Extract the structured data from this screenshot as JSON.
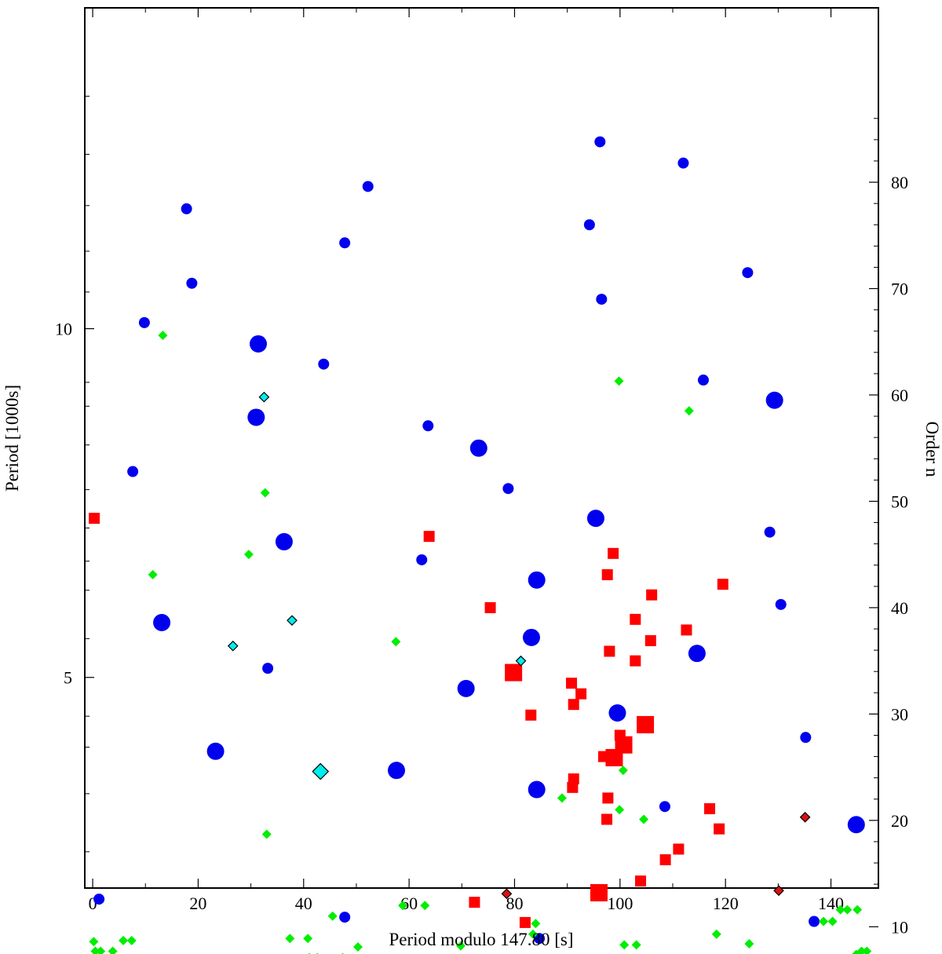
{
  "chart_data": {
    "type": "scatter",
    "xlabel": "Period modulo 147.80 [s]",
    "ylabel": "Period [1000s]",
    "y2label": "Order n",
    "xlim": [
      -1.5,
      149
    ],
    "ylim_period_ks": [
      1.98,
      14.6
    ],
    "y_scale": "linear in order n (inverse relation with period)",
    "order_period_ks": {
      "n1": 40,
      "p1": 6.0,
      "n2": 80,
      "p2": 12.1
    },
    "x_ticks": [
      0,
      20,
      40,
      60,
      80,
      100,
      120,
      140
    ],
    "x_tick_labels": [
      "0",
      "20",
      "40",
      "60",
      "80",
      "100",
      "120",
      "140"
    ],
    "y_left_ticks": [
      10,
      5
    ],
    "y_left_tick_labels": [
      "10",
      "5"
    ],
    "y_left_minor_ticks": [
      2.5,
      3.333,
      4.0,
      4.444,
      5.556,
      6.25,
      6.667,
      7.143,
      7.692,
      8.333,
      8.889,
      9.231,
      10.526,
      11.111,
      11.765,
      12.5,
      13.333
    ],
    "y_right_ticks": [
      10,
      20,
      30,
      40,
      50,
      60,
      70,
      80
    ],
    "y_right_tick_labels": [
      "10",
      "20",
      "30",
      "40",
      "50",
      "60",
      "70",
      "80"
    ],
    "grid": false,
    "colors": {
      "blue": "#0000ee",
      "red": "#ff0000",
      "green": "#00ee00",
      "cyan": "#00eeee",
      "darkred": "#dd1111"
    },
    "series": [
      {
        "marker": "circle",
        "color": "blue",
        "size": "small",
        "points": [
          [
            96.2,
            83.8
          ],
          [
            112,
            81.8
          ],
          [
            52.2,
            79.6
          ],
          [
            17.8,
            77.5
          ],
          [
            94.2,
            76.0
          ],
          [
            47.8,
            74.3
          ],
          [
            124.2,
            71.5
          ],
          [
            18.8,
            70.5
          ],
          [
            96.5,
            69.0
          ],
          [
            9.8,
            66.8
          ],
          [
            43.8,
            62.9
          ],
          [
            115.8,
            61.4
          ],
          [
            63.6,
            57.1
          ],
          [
            7.6,
            52.8
          ],
          [
            78.8,
            51.2
          ],
          [
            128.4,
            47.1
          ],
          [
            62.4,
            44.5
          ],
          [
            130.5,
            40.3
          ],
          [
            33.2,
            34.3
          ],
          [
            135.2,
            27.8
          ],
          [
            108.5,
            21.3
          ],
          [
            1.2,
            12.6
          ],
          [
            47.8,
            10.9
          ],
          [
            136.8,
            10.5
          ],
          [
            84.7,
            8.9
          ]
        ]
      },
      {
        "marker": "circle",
        "color": "blue",
        "size": "large",
        "points": [
          [
            31.4,
            64.8
          ],
          [
            129.3,
            59.5
          ],
          [
            31.0,
            57.9
          ],
          [
            73.2,
            55.0
          ],
          [
            95.4,
            48.4
          ],
          [
            36.3,
            46.2
          ],
          [
            84.2,
            42.6
          ],
          [
            13.1,
            38.6
          ],
          [
            83.2,
            37.2
          ],
          [
            114.6,
            35.7
          ],
          [
            70.8,
            32.4
          ],
          [
            99.5,
            30.1
          ],
          [
            23.3,
            26.5
          ],
          [
            57.6,
            24.7
          ],
          [
            84.2,
            22.9
          ],
          [
            144.8,
            19.6
          ]
        ]
      },
      {
        "marker": "square",
        "color": "red",
        "size": "small",
        "points": [
          [
            0.3,
            48.4
          ],
          [
            63.8,
            46.7
          ],
          [
            98.7,
            45.1
          ],
          [
            97.6,
            43.1
          ],
          [
            119.5,
            42.2
          ],
          [
            106,
            41.2
          ],
          [
            75.4,
            40.0
          ],
          [
            102.9,
            38.9
          ],
          [
            112.6,
            37.9
          ],
          [
            105.8,
            36.9
          ],
          [
            98.0,
            35.9
          ],
          [
            102.9,
            35.0
          ],
          [
            90.8,
            32.9
          ],
          [
            92.6,
            31.9
          ],
          [
            91.2,
            30.9
          ],
          [
            83.1,
            29.9
          ],
          [
            100,
            28.0
          ],
          [
            96.9,
            26.0
          ],
          [
            91.2,
            23.9
          ],
          [
            91.0,
            23.1
          ],
          [
            97.7,
            22.1
          ],
          [
            117,
            21.1
          ],
          [
            97.5,
            20.1
          ],
          [
            118.8,
            19.2
          ],
          [
            111.1,
            17.3
          ],
          [
            108.6,
            16.3
          ],
          [
            103.9,
            14.3
          ],
          [
            72.4,
            12.3
          ],
          [
            82.0,
            10.4
          ]
        ]
      },
      {
        "marker": "square",
        "color": "red",
        "size": "large",
        "points": [
          [
            79.8,
            33.9
          ],
          [
            104.8,
            29.0
          ],
          [
            100.7,
            27.1
          ],
          [
            98.9,
            25.9
          ],
          [
            96.0,
            13.2
          ]
        ]
      },
      {
        "marker": "diamond",
        "color": "green",
        "size": "small",
        "points": [
          [
            13.3,
            65.6
          ],
          [
            99.8,
            61.3
          ],
          [
            113.1,
            58.5
          ],
          [
            32.7,
            50.8
          ],
          [
            29.6,
            45.0
          ],
          [
            11.4,
            43.1
          ],
          [
            57.5,
            36.8
          ],
          [
            100.6,
            24.7
          ],
          [
            89.0,
            22.1
          ],
          [
            99.9,
            21.0
          ],
          [
            104.5,
            20.1
          ],
          [
            33.0,
            18.7
          ],
          [
            145.0,
            11.6
          ],
          [
            143.1,
            11.6
          ],
          [
            141.8,
            11.6
          ],
          [
            58.8,
            12.0
          ],
          [
            63.0,
            12.0
          ],
          [
            45.5,
            11.0
          ],
          [
            84.0,
            10.3
          ],
          [
            138.6,
            10.5
          ],
          [
            140.3,
            10.5
          ],
          [
            83.5,
            9.3
          ],
          [
            118.3,
            9.3
          ],
          [
            0.2,
            8.6
          ],
          [
            5.8,
            8.7
          ],
          [
            7.4,
            8.7
          ],
          [
            37.4,
            8.9
          ],
          [
            40.8,
            8.9
          ],
          [
            124.5,
            8.4
          ],
          [
            0.5,
            7.7
          ],
          [
            1.5,
            7.7
          ],
          [
            3.8,
            7.7
          ],
          [
            50.3,
            8.1
          ],
          [
            69.8,
            8.2
          ],
          [
            100.8,
            8.3
          ],
          [
            103.1,
            8.3
          ],
          [
            41.1,
            7.1
          ],
          [
            42.6,
            7.1
          ],
          [
            47.4,
            7.1
          ],
          [
            146.8,
            7.7
          ],
          [
            145.8,
            7.7
          ],
          [
            144.8,
            7.4
          ],
          [
            143.8,
            6.6
          ],
          [
            145.5,
            6.6
          ],
          [
            146.4,
            6.6
          ],
          [
            31.2,
            5.8
          ],
          [
            59.2,
            5.9
          ],
          [
            69.9,
            5.9
          ],
          [
            70.9,
            5.9
          ],
          [
            106.3,
            6.3
          ],
          [
            107.4,
            6.3
          ],
          [
            108.0,
            6.3
          ]
        ]
      },
      {
        "marker": "diamond",
        "color": "cyan",
        "size": "small",
        "points": [
          [
            32.5,
            59.8
          ],
          [
            37.8,
            38.8
          ],
          [
            26.6,
            36.4
          ],
          [
            81.2,
            35.0
          ]
        ]
      },
      {
        "marker": "diamond",
        "color": "cyan",
        "size": "large",
        "points": [
          [
            43.2,
            24.6
          ]
        ]
      },
      {
        "marker": "diamond",
        "color": "darkred",
        "size": "small",
        "points": [
          [
            135.1,
            20.3
          ],
          [
            78.5,
            13.1
          ],
          [
            130.1,
            13.4
          ]
        ]
      }
    ]
  }
}
